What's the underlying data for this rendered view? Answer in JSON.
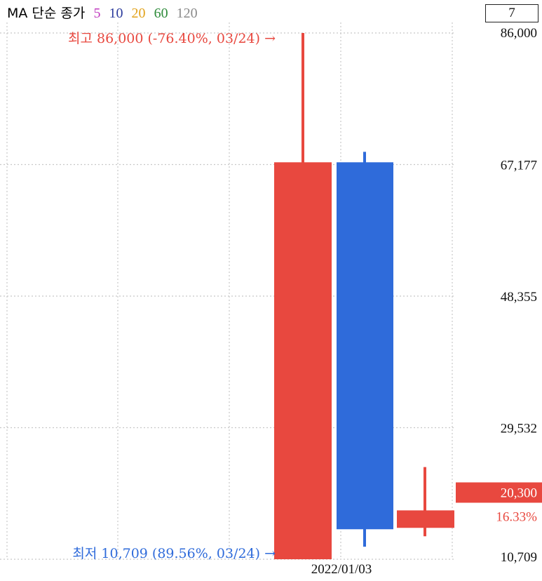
{
  "ma_legend": {
    "prefix": "MA 단순 종가",
    "periods": [
      {
        "label": "5",
        "color": "#c03bbf"
      },
      {
        "label": "10",
        "color": "#2a3a9c"
      },
      {
        "label": "20",
        "color": "#e2a21a"
      },
      {
        "label": "60",
        "color": "#2e8b3a"
      },
      {
        "label": "120",
        "color": "#8a8a8a"
      }
    ]
  },
  "period_box": "7",
  "colors": {
    "up": "#e8483f",
    "down": "#2f6bda",
    "grid": "#c8c8c8"
  },
  "annotations": {
    "high": "최고 86,000 (-76.40%, 03/24) →",
    "low": "최저 10,709 (89.56%, 03/24) →"
  },
  "current": {
    "price_label": "20,300",
    "change_label": "16.33%"
  },
  "chart_data": {
    "type": "candlestick",
    "ylim": [
      10709,
      86000
    ],
    "y_ticks": [
      "86,000",
      "67,177",
      "48,355",
      "29,532",
      "10,709"
    ],
    "y_tick_values": [
      86000,
      67177,
      48355,
      29532,
      10709
    ],
    "x_tick_labels": [
      "2022/01/03"
    ],
    "candles": [
      {
        "open": 10709,
        "close": 67500,
        "high": 86000,
        "low": 10709,
        "direction": "up"
      },
      {
        "open": 67500,
        "close": 15000,
        "high": 69000,
        "low": 12500,
        "direction": "down"
      },
      {
        "open": 15200,
        "close": 17700,
        "high": 23900,
        "low": 14000,
        "direction": "up"
      }
    ],
    "last_price": 20300
  }
}
